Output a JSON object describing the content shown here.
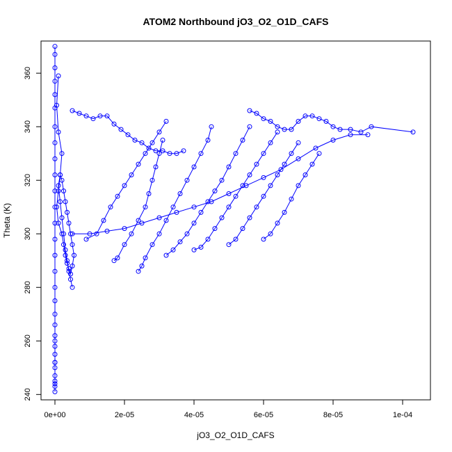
{
  "chart_data": {
    "type": "scatter",
    "title": "ATOM2 Northbound jO3_O2_O1D_CAFS",
    "xlabel": "jO3_O2_O1D_CAFS",
    "ylabel": "Theta (K)",
    "xlim": [
      -4e-06,
      0.000108
    ],
    "ylim": [
      238,
      372
    ],
    "x_ticks": [
      0,
      2e-05,
      4e-05,
      6e-05,
      8e-05,
      0.0001
    ],
    "x_tick_labels": [
      "0e+00",
      "2e-05",
      "4e-05",
      "6e-05",
      "8e-05",
      "1e-04"
    ],
    "y_ticks": [
      240,
      260,
      280,
      300,
      320,
      340,
      360
    ],
    "y_tick_labels": [
      "240",
      "260",
      "280",
      "300",
      "320",
      "340",
      "360"
    ],
    "grid": false,
    "legend": "none",
    "marker": "open-circle",
    "connected": true,
    "color": "#0000ff",
    "series": [
      {
        "x": [
          0.0,
          0.0,
          0.0,
          0.0,
          0.0,
          0.0,
          0.0,
          0.0,
          0.0,
          0.0,
          0.0,
          0.0,
          0.0,
          0.0,
          0.0,
          0.0,
          0.0,
          0.0,
          0.0,
          0.0,
          0.0,
          0.0,
          0.0,
          0.0,
          0.0,
          0.0,
          0.0,
          0.0,
          0.0,
          0.0,
          0.0,
          0.0
        ],
        "y": [
          370,
          367,
          362,
          357,
          352,
          347,
          340,
          334,
          328,
          322,
          316,
          310,
          304,
          298,
          292,
          286,
          280,
          275,
          270,
          266,
          262,
          258,
          255,
          252,
          250,
          247,
          245,
          243,
          241,
          244,
          252,
          260
        ]
      },
      {
        "x": [
          1e-06,
          5e-07,
          1e-06,
          2e-06,
          1.5e-06,
          1e-06,
          5e-07,
          1e-06,
          2e-06,
          2.5e-06,
          3e-06,
          3.5e-06,
          4e-06,
          4.5e-06,
          5e-06,
          5.5e-06,
          5e-06,
          4.5e-06,
          4e-06,
          3.5e-06,
          3e-06,
          2.5e-06,
          2e-06,
          1.5e-06,
          1e-06,
          1.5e-06,
          2e-06,
          2.5e-06,
          3e-06,
          3.5e-06,
          4e-06,
          4.5e-06,
          5e-06
        ],
        "y": [
          359,
          348,
          338,
          330,
          322,
          316,
          310,
          304,
          300,
          296,
          292,
          289,
          287,
          285,
          288,
          292,
          296,
          300,
          304,
          308,
          312,
          316,
          320,
          322,
          318,
          312,
          306,
          300,
          294,
          290,
          286,
          283,
          280
        ]
      },
      {
        "x": [
          5e-06,
          7e-06,
          9e-06,
          1.1e-05,
          1.3e-05,
          1.5e-05,
          1.7e-05,
          1.9e-05,
          2.1e-05,
          2.3e-05,
          2.5e-05,
          2.7e-05,
          2.9e-05,
          3.1e-05,
          3.3e-05,
          3.5e-05,
          3.7e-05
        ],
        "y": [
          346,
          345,
          344,
          343,
          344,
          344,
          341,
          339,
          337,
          335,
          334,
          332,
          331,
          331,
          330,
          330,
          331
        ]
      },
      {
        "x": [
          9e-06,
          1.2e-05,
          1.4e-05,
          1.6e-05,
          1.8e-05,
          2e-05,
          2.2e-05,
          2.4e-05,
          2.6e-05,
          2.8e-05,
          3e-05,
          3.2e-05
        ],
        "y": [
          298,
          300,
          305,
          310,
          314,
          318,
          322,
          326,
          330,
          334,
          338,
          342
        ]
      },
      {
        "x": [
          1.7e-05,
          1.8e-05,
          2e-05,
          2.2e-05,
          2.4e-05,
          2.6e-05,
          2.7e-05,
          2.8e-05,
          2.9e-05,
          3e-05,
          3.1e-05
        ],
        "y": [
          290,
          291,
          296,
          300,
          305,
          310,
          315,
          320,
          325,
          330,
          335
        ]
      },
      {
        "x": [
          2.4e-05,
          2.5e-05,
          2.6e-05,
          2.8e-05,
          3e-05,
          3.2e-05,
          3.4e-05,
          3.6e-05,
          3.8e-05,
          4e-05,
          4.2e-05,
          4.4e-05,
          4.5e-05
        ],
        "y": [
          286,
          288,
          291,
          296,
          300,
          305,
          310,
          315,
          320,
          325,
          330,
          335,
          340
        ]
      },
      {
        "x": [
          3.2e-05,
          3.4e-05,
          3.6e-05,
          3.8e-05,
          4e-05,
          4.2e-05,
          4.4e-05,
          4.6e-05,
          4.8e-05,
          5e-05,
          5.2e-05,
          5.4e-05,
          5.6e-05
        ],
        "y": [
          292,
          294,
          297,
          300,
          304,
          308,
          312,
          316,
          320,
          325,
          330,
          335,
          340
        ]
      },
      {
        "x": [
          4e-05,
          4.2e-05,
          4.4e-05,
          4.6e-05,
          4.8e-05,
          5e-05,
          5.2e-05,
          5.4e-05,
          5.6e-05,
          5.8e-05,
          6e-05,
          6.2e-05,
          6.4e-05
        ],
        "y": [
          294,
          295,
          298,
          302,
          306,
          310,
          314,
          318,
          322,
          326,
          330,
          334,
          338
        ]
      },
      {
        "x": [
          5e-05,
          5.2e-05,
          5.4e-05,
          5.6e-05,
          5.8e-05,
          6e-05,
          6.2e-05,
          6.4e-05,
          6.6e-05,
          6.8e-05,
          7e-05
        ],
        "y": [
          296,
          298,
          302,
          306,
          310,
          314,
          318,
          322,
          326,
          330,
          334
        ]
      },
      {
        "x": [
          6e-05,
          6.2e-05,
          6.4e-05,
          6.6e-05,
          6.8e-05,
          7e-05,
          7.2e-05,
          7.4e-05,
          7.6e-05
        ],
        "y": [
          298,
          300,
          304,
          308,
          313,
          318,
          322,
          326,
          330
        ]
      },
      {
        "x": [
          5.6e-05,
          5.8e-05,
          6e-05,
          6.2e-05,
          6.4e-05,
          6.6e-05,
          6.8e-05,
          7e-05,
          7.2e-05,
          7.4e-05,
          7.6e-05,
          7.8e-05,
          8e-05,
          8.2e-05,
          8.5e-05,
          8.8e-05,
          9.1e-05,
          0.000103
        ],
        "y": [
          346,
          345,
          343,
          342,
          340,
          339,
          339,
          342,
          344,
          344,
          343,
          342,
          340,
          339,
          339,
          338,
          340,
          338
        ]
      },
      {
        "x": [
          5e-06,
          1e-05,
          1.5e-05,
          2e-05,
          2.5e-05,
          3e-05,
          3.5e-05,
          4e-05,
          4.5e-05,
          5e-05,
          5.5e-05,
          6e-05,
          6.5e-05,
          7e-05,
          7.5e-05,
          8e-05,
          8.5e-05,
          9e-05
        ],
        "y": [
          300,
          300,
          301,
          302,
          304,
          306,
          308,
          310,
          312,
          315,
          318,
          321,
          324,
          328,
          332,
          335,
          337,
          337
        ]
      }
    ]
  }
}
